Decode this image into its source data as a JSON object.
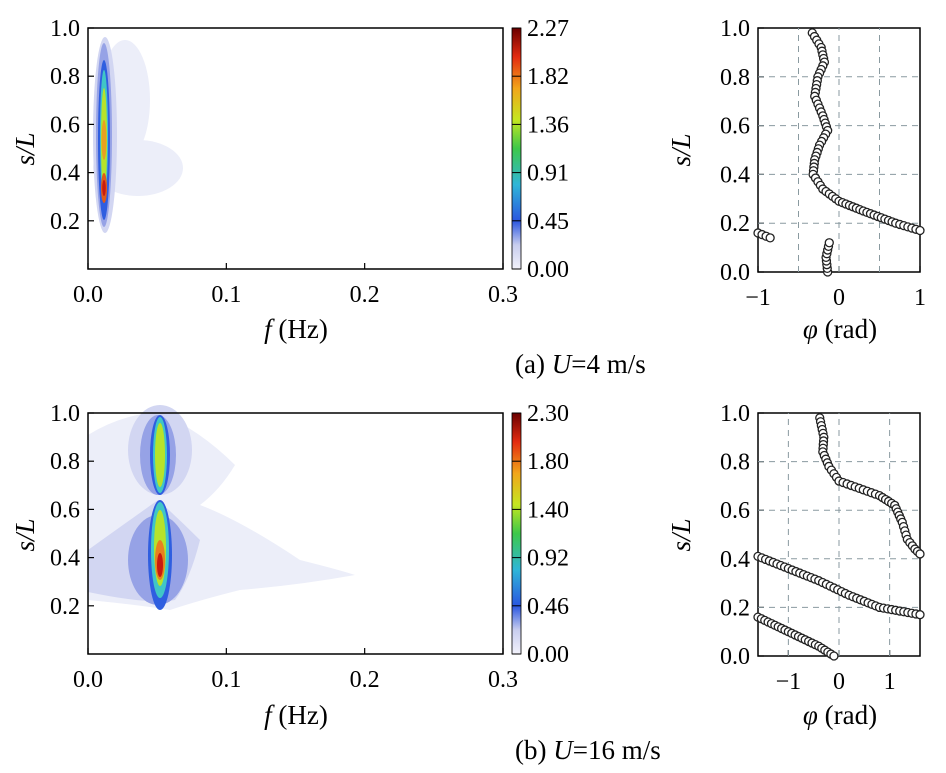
{
  "figure": {
    "captions": [
      {
        "prefix": "(a) ",
        "var": "U",
        "rest": "=4 m/s"
      },
      {
        "prefix": "(b) ",
        "var": "U",
        "rest": "=16 m/s"
      }
    ]
  },
  "chart_data": [
    {
      "id": "a-spectrum",
      "type": "heatmap",
      "title": "",
      "xlabel_var": "f",
      "xlabel_unit": " (Hz)",
      "ylabel": "s/L",
      "xlim": [
        0.0,
        0.3
      ],
      "ylim": [
        0.0,
        1.0
      ],
      "xticks": [
        "0.0",
        "0.1",
        "0.2",
        "0.3"
      ],
      "yticks": [
        "0.2",
        "0.4",
        "0.6",
        "0.8",
        "1.0"
      ],
      "colorbar": {
        "min": 0.0,
        "max": 2.27,
        "ticks": [
          "0.00",
          "0.45",
          "0.91",
          "1.36",
          "1.82",
          "2.27"
        ]
      },
      "peaks": [
        {
          "f": 0.022,
          "s": 0.33,
          "value": 2.0
        },
        {
          "f": 0.022,
          "s": 0.52,
          "value": 1.9
        },
        {
          "f": 0.022,
          "s": 0.72,
          "value": 1.3
        }
      ]
    },
    {
      "id": "a-phase",
      "type": "scatter",
      "xlabel_var": "φ",
      "xlabel_unit": " (rad)",
      "ylabel": "s/L",
      "xlim": [
        -1,
        1
      ],
      "ylim": [
        0.0,
        1.0
      ],
      "xticks": [
        "−1",
        "0",
        "1"
      ],
      "yticks": [
        "0.0",
        "0.2",
        "0.4",
        "0.6",
        "0.8",
        "1.0"
      ],
      "grid": true,
      "curves": [
        {
          "name": "branch-1",
          "points": [
            [
              -1.0,
              0.16
            ],
            [
              -0.85,
              0.14
            ]
          ]
        },
        {
          "name": "branch-2",
          "points": [
            [
              -0.14,
              0.0
            ],
            [
              -0.16,
              0.06
            ],
            [
              -0.12,
              0.12
            ]
          ]
        },
        {
          "name": "branch-3",
          "points": [
            [
              -0.33,
              0.98
            ],
            [
              -0.22,
              0.92
            ],
            [
              -0.18,
              0.86
            ],
            [
              -0.26,
              0.8
            ],
            [
              -0.3,
              0.72
            ],
            [
              -0.2,
              0.64
            ],
            [
              -0.14,
              0.58
            ],
            [
              -0.24,
              0.52
            ],
            [
              -0.3,
              0.46
            ],
            [
              -0.32,
              0.4
            ],
            [
              -0.2,
              0.34
            ],
            [
              0.0,
              0.29
            ],
            [
              0.3,
              0.25
            ],
            [
              0.7,
              0.2
            ],
            [
              1.0,
              0.17
            ]
          ]
        }
      ]
    },
    {
      "id": "b-spectrum",
      "type": "heatmap",
      "title": "",
      "xlabel_var": "f",
      "xlabel_unit": " (Hz)",
      "ylabel": "s/L",
      "xlim": [
        0.0,
        0.3
      ],
      "ylim": [
        0.0,
        1.0
      ],
      "xticks": [
        "0.0",
        "0.1",
        "0.2",
        "0.3"
      ],
      "yticks": [
        "0.2",
        "0.4",
        "0.6",
        "0.8",
        "1.0"
      ],
      "colorbar": {
        "min": 0.0,
        "max": 2.3,
        "ticks": [
          "0.00",
          "0.46",
          "0.92",
          "1.40",
          "1.80",
          "2.30"
        ]
      },
      "peaks": [
        {
          "f": 0.058,
          "s": 0.36,
          "value": 2.1
        },
        {
          "f": 0.058,
          "s": 0.84,
          "value": 1.3
        }
      ]
    },
    {
      "id": "b-phase",
      "type": "scatter",
      "xlabel_var": "φ",
      "xlabel_unit": " (rad)",
      "ylabel": "s/L",
      "xlim": [
        -1.6,
        1.6
      ],
      "ylim": [
        0.0,
        1.0
      ],
      "xticks": [
        "−1",
        "0",
        "1"
      ],
      "yticks": [
        "0.0",
        "0.2",
        "0.4",
        "0.6",
        "0.8",
        "1.0"
      ],
      "grid": true,
      "curves": [
        {
          "name": "branch-1",
          "points": [
            [
              -1.6,
              0.16
            ],
            [
              -1.2,
              0.12
            ],
            [
              -0.8,
              0.08
            ],
            [
              -0.4,
              0.04
            ],
            [
              -0.1,
              0.0
            ]
          ]
        },
        {
          "name": "branch-2",
          "points": [
            [
              -1.6,
              0.41
            ],
            [
              -1.0,
              0.36
            ],
            [
              -0.4,
              0.31
            ],
            [
              0.2,
              0.25
            ],
            [
              0.8,
              0.2
            ],
            [
              1.6,
              0.17
            ]
          ]
        },
        {
          "name": "branch-3",
          "points": [
            [
              -0.38,
              0.98
            ],
            [
              -0.3,
              0.9
            ],
            [
              -0.32,
              0.84
            ],
            [
              -0.2,
              0.78
            ],
            [
              0.0,
              0.72
            ],
            [
              0.4,
              0.69
            ],
            [
              0.8,
              0.66
            ],
            [
              1.1,
              0.62
            ],
            [
              1.25,
              0.55
            ],
            [
              1.35,
              0.48
            ],
            [
              1.5,
              0.44
            ],
            [
              1.6,
              0.42
            ]
          ]
        }
      ]
    }
  ]
}
